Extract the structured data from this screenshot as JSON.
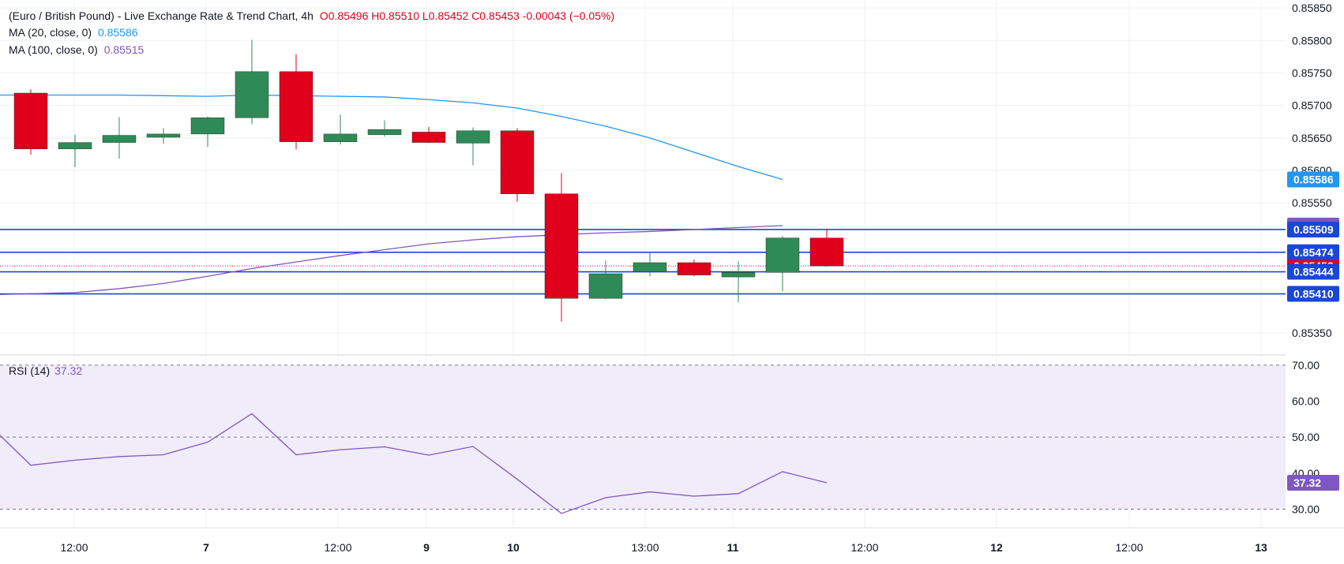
{
  "header": {
    "title": "(Euro / British Pound) - Live Exchange Rate & Trend Chart, 4h",
    "ohlc": "O0.85496  H0.85510  L0.85452  C0.85453  -0.00043 (−0.05%)"
  },
  "indicators": {
    "ma20_label": "MA (20, close, 0)",
    "ma20_value": "0.85586",
    "ma100_label": "MA (100, close, 0)",
    "ma100_value": "0.85515",
    "rsi_label": "RSI (14)",
    "rsi_value": "37.32"
  },
  "colors": {
    "up": "#2e8b57",
    "down": "#e0001b",
    "ma20": "#2196f3",
    "ma100": "#7e57c2",
    "hline": "#1a47d6",
    "rsi_band": "#f1ecfa"
  },
  "chart_data": {
    "type": "candlestick",
    "price_axis": {
      "range": [
        0.85322,
        0.85855
      ],
      "ticks": [
        "0.85850",
        "0.85800",
        "0.85750",
        "0.85700",
        "0.85650",
        "0.85600",
        "0.85550",
        "0.85350"
      ],
      "tick_values": [
        0.8585,
        0.858,
        0.8575,
        0.857,
        0.8565,
        0.856,
        0.8555,
        0.8535
      ]
    },
    "x_labels": [
      "12:00",
      "7",
      "12:00",
      "9",
      "10",
      "13:00",
      "11",
      "12:00",
      "12",
      "12:00",
      "13"
    ],
    "candles": [
      {
        "o": 0.85719,
        "h": 0.85725,
        "l": 0.85624,
        "c": 0.85633
      },
      {
        "o": 0.85633,
        "h": 0.85655,
        "l": 0.85605,
        "c": 0.85643
      },
      {
        "o": 0.85643,
        "h": 0.85682,
        "l": 0.85618,
        "c": 0.85654
      },
      {
        "o": 0.85651,
        "h": 0.85665,
        "l": 0.85641,
        "c": 0.85656
      },
      {
        "o": 0.85656,
        "h": 0.85683,
        "l": 0.85636,
        "c": 0.85681
      },
      {
        "o": 0.85681,
        "h": 0.85801,
        "l": 0.85671,
        "c": 0.85752
      },
      {
        "o": 0.85752,
        "h": 0.85779,
        "l": 0.85632,
        "c": 0.85644
      },
      {
        "o": 0.85644,
        "h": 0.85686,
        "l": 0.8564,
        "c": 0.85656
      },
      {
        "o": 0.85655,
        "h": 0.85677,
        "l": 0.85652,
        "c": 0.85663
      },
      {
        "o": 0.85659,
        "h": 0.85667,
        "l": 0.85642,
        "c": 0.85643
      },
      {
        "o": 0.85642,
        "h": 0.85666,
        "l": 0.85608,
        "c": 0.85661
      },
      {
        "o": 0.85661,
        "h": 0.85665,
        "l": 0.85552,
        "c": 0.85564
      },
      {
        "o": 0.85564,
        "h": 0.85596,
        "l": 0.85367,
        "c": 0.85403
      },
      {
        "o": 0.85403,
        "h": 0.85461,
        "l": 0.85402,
        "c": 0.85441
      },
      {
        "o": 0.85444,
        "h": 0.85474,
        "l": 0.85437,
        "c": 0.85458
      },
      {
        "o": 0.85458,
        "h": 0.85463,
        "l": 0.85437,
        "c": 0.85439
      },
      {
        "o": 0.85436,
        "h": 0.8546,
        "l": 0.85397,
        "c": 0.85443
      },
      {
        "o": 0.85443,
        "h": 0.85499,
        "l": 0.85414,
        "c": 0.85496
      },
      {
        "o": 0.85496,
        "h": 0.8551,
        "l": 0.85452,
        "c": 0.85453
      }
    ],
    "ma20": [
      0.85716,
      0.85716,
      0.85716,
      0.85715,
      0.85714,
      0.85716,
      0.85715,
      0.85714,
      0.85713,
      0.85709,
      0.85704,
      0.85696,
      0.85683,
      0.85668,
      0.8565,
      0.85628,
      0.85606,
      0.85586
    ],
    "ma100": [
      0.85409,
      0.85412,
      0.85418,
      0.85426,
      0.85437,
      0.85449,
      0.85459,
      0.85469,
      0.85478,
      0.85487,
      0.85493,
      0.85498,
      0.85501,
      0.85504,
      0.85506,
      0.85509,
      0.85512,
      0.85515
    ],
    "hlines": [
      {
        "value": 0.85509,
        "label": "0.85509"
      },
      {
        "value": 0.85474,
        "label": "0.85474"
      },
      {
        "value": 0.85444,
        "label": "0.85444"
      },
      {
        "value": 0.8541,
        "label": "0.85410"
      }
    ],
    "price_tags": [
      {
        "value": 0.85586,
        "label": "0.85586",
        "color": "#2196f3"
      },
      {
        "value": 0.85515,
        "label": "0.85515",
        "color": "#7e57c2"
      },
      {
        "value": 0.85453,
        "label": "0.85453",
        "color": "#e0001b"
      }
    ],
    "last_close": 0.85453,
    "rsi": {
      "range": [
        25.5,
        71.5
      ],
      "ticks": [
        "70.00",
        "60.00",
        "50.00",
        "40.00",
        "30.00"
      ],
      "tick_values": [
        70,
        60,
        50,
        40,
        30
      ],
      "band": [
        30,
        70
      ],
      "midline": 50,
      "values": [
        50.5,
        42.2,
        43.6,
        44.6,
        45.1,
        48.6,
        56.5,
        45.1,
        46.5,
        47.3,
        45.0,
        47.4,
        38.3,
        28.8,
        33.2,
        34.8,
        33.6,
        34.3,
        40.4,
        37.32
      ],
      "last_label": "37.32"
    }
  }
}
